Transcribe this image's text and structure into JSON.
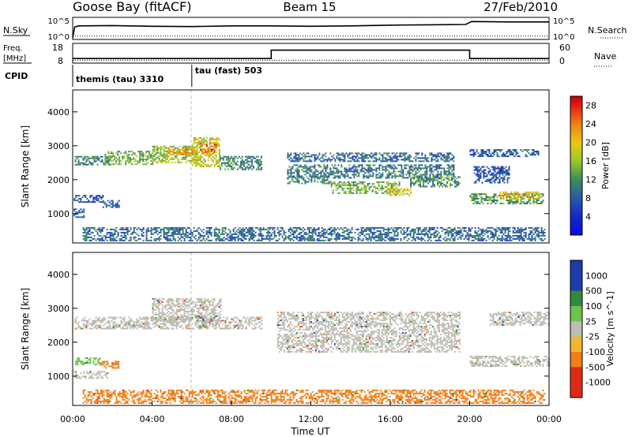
{
  "header": {
    "station": "Goose Bay (fitACF)",
    "beam": "Beam 15",
    "date": "27/Feb/2010"
  },
  "chart_data": [
    {
      "type": "line",
      "panel": "noise",
      "left_label": "N.Sky",
      "right_label": "N.Search",
      "y_ticks": [
        "10^5",
        "10^0"
      ],
      "y_scale": "log",
      "series": [
        {
          "name": "N.Sky",
          "style": "solid",
          "x": [
            0.0,
            0.1,
            0.3,
            2,
            4,
            6,
            8,
            10,
            12,
            14,
            16,
            18,
            19.8,
            20.1,
            22,
            24
          ],
          "y": [
            0.0,
            3.0,
            3.3,
            3.4,
            3.2,
            3.1,
            3.3,
            3.3,
            3.2,
            3.3,
            3.5,
            3.6,
            3.7,
            4.5,
            4.4,
            4.4
          ]
        },
        {
          "name": "N.Search",
          "style": "dotted",
          "x": [
            0.0,
            24
          ],
          "y": [
            0.5,
            0.5
          ]
        }
      ]
    },
    {
      "type": "line",
      "panel": "freq-nave",
      "left_label_top": "Freq.",
      "left_label_unit": "[MHz]",
      "right_label": "Nave",
      "left_ticks": [
        "18",
        "8"
      ],
      "right_ticks": [
        "60",
        "0"
      ],
      "series": [
        {
          "name": "Freq.",
          "style": "dotted",
          "x": [
            0,
            24
          ],
          "y": [
            9.2,
            9.2
          ]
        },
        {
          "name": "Nave",
          "style": "solid",
          "axis": "right",
          "x": [
            0,
            10.0,
            10.0,
            20.0,
            20.0,
            24
          ],
          "y": [
            13,
            13,
            42,
            42,
            13,
            13
          ]
        }
      ]
    },
    {
      "type": "table",
      "panel": "cpid",
      "label": "CPID",
      "entries": [
        {
          "name": "themis (tau)",
          "id": "3310",
          "start": 0.0
        },
        {
          "name": "tau (fast)",
          "id": "503",
          "start": 6.0
        }
      ]
    },
    {
      "type": "heatmap",
      "panel": "power",
      "ylabel": "Slant Range [km]",
      "xlim": [
        0,
        24
      ],
      "ylim": [
        180,
        4600
      ],
      "y_ticks": [
        1000,
        2000,
        3000,
        4000
      ],
      "colorbar": {
        "label": "Power [dB]",
        "ticks": [
          4,
          8,
          12,
          16,
          20,
          24,
          28
        ],
        "range": [
          0,
          30
        ]
      },
      "regions": [
        {
          "x": [
            0.05,
            0.55
          ],
          "y": [
            900,
            1150
          ],
          "value": 8
        },
        {
          "x": [
            0.05,
            1.5
          ],
          "y": [
            1350,
            1550
          ],
          "value": 7
        },
        {
          "x": [
            1.5,
            2.3
          ],
          "y": [
            1200,
            1400
          ],
          "value": 8
        },
        {
          "x": [
            0.1,
            2.0
          ],
          "y": [
            2450,
            2700
          ],
          "value": 10
        },
        {
          "x": [
            1.6,
            4.0
          ],
          "y": [
            2450,
            2850
          ],
          "value": 14
        },
        {
          "x": [
            4.0,
            6.3
          ],
          "y": [
            2500,
            3000
          ],
          "value": 16
        },
        {
          "x": [
            4.8,
            6.2
          ],
          "y": [
            2750,
            2950
          ],
          "value": 22
        },
        {
          "x": [
            6.0,
            7.4
          ],
          "y": [
            2400,
            3250
          ],
          "value": 18
        },
        {
          "x": [
            6.4,
            7.2
          ],
          "y": [
            2800,
            3100
          ],
          "value": 25
        },
        {
          "x": [
            7.4,
            9.5
          ],
          "y": [
            2300,
            2700
          ],
          "value": 11
        },
        {
          "x": [
            10.8,
            19.2
          ],
          "y": [
            2550,
            2800
          ],
          "value": 9
        },
        {
          "x": [
            10.8,
            19.2
          ],
          "y": [
            2050,
            2450
          ],
          "value": 10
        },
        {
          "x": [
            10.8,
            13.0
          ],
          "y": [
            1900,
            2100
          ],
          "value": 11
        },
        {
          "x": [
            13.0,
            16.5
          ],
          "y": [
            1600,
            1950
          ],
          "value": 14
        },
        {
          "x": [
            15.8,
            17.0
          ],
          "y": [
            1550,
            1750
          ],
          "value": 20
        },
        {
          "x": [
            17.0,
            19.5
          ],
          "y": [
            1800,
            2100
          ],
          "value": 12
        },
        {
          "x": [
            20.0,
            23.7
          ],
          "y": [
            1300,
            1600
          ],
          "value": 13
        },
        {
          "x": [
            21.5,
            23.5
          ],
          "y": [
            1450,
            1650
          ],
          "value": 20
        },
        {
          "x": [
            20.0,
            23.5
          ],
          "y": [
            2700,
            2900
          ],
          "value": 8
        },
        {
          "x": [
            20.2,
            22.0
          ],
          "y": [
            1900,
            2400
          ],
          "value": 7
        },
        {
          "x": [
            0.5,
            23.8
          ],
          "y": [
            190,
            600
          ],
          "value": 9
        }
      ]
    },
    {
      "type": "heatmap",
      "panel": "velocity",
      "ylabel": "Slant Range [km]",
      "xlabel": "Time UT",
      "xlim": [
        0,
        24
      ],
      "ylim": [
        180,
        4600
      ],
      "x_ticks": [
        "00:00",
        "04:00",
        "08:00",
        "12:00",
        "16:00",
        "20:00",
        "00:00"
      ],
      "y_ticks": [
        1000,
        2000,
        3000,
        4000
      ],
      "colorbar": {
        "label": "Velocity [m s^-1]",
        "ticks": [
          "1000",
          "500",
          "100",
          "25",
          "-25",
          "-100",
          "-500",
          "-1000"
        ]
      },
      "regions": [
        {
          "x": [
            0.05,
            1.8
          ],
          "y": [
            950,
            1150
          ],
          "value": 0
        },
        {
          "x": [
            0.05,
            1.4
          ],
          "y": [
            1350,
            1550
          ],
          "value": 60
        },
        {
          "x": [
            1.4,
            2.3
          ],
          "y": [
            1250,
            1450
          ],
          "value": -300
        },
        {
          "x": [
            0.1,
            9.5
          ],
          "y": [
            2400,
            2750
          ],
          "value": 0
        },
        {
          "x": [
            4.0,
            7.5
          ],
          "y": [
            2600,
            3300
          ],
          "value": 0
        },
        {
          "x": [
            10.3,
            19.5
          ],
          "y": [
            1700,
            2900
          ],
          "value": 0
        },
        {
          "x": [
            20.0,
            24.0
          ],
          "y": [
            1300,
            1600
          ],
          "value": 0
        },
        {
          "x": [
            21.0,
            24.0
          ],
          "y": [
            2500,
            2900
          ],
          "value": 0
        },
        {
          "x": [
            0.5,
            23.8
          ],
          "y": [
            190,
            600
          ],
          "value": -150
        }
      ]
    }
  ]
}
